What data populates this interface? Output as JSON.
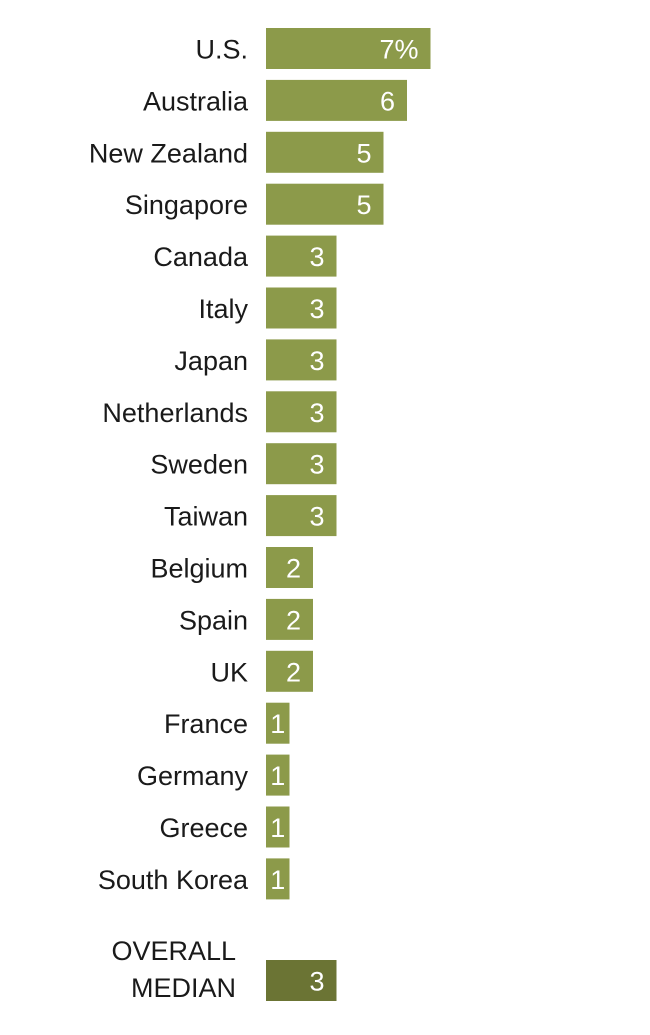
{
  "chart_data": {
    "type": "bar",
    "orientation": "horizontal",
    "categories": [
      "U.S.",
      "Australia",
      "New Zealand",
      "Singapore",
      "Canada",
      "Italy",
      "Japan",
      "Netherlands",
      "Sweden",
      "Taiwan",
      "Belgium",
      "Spain",
      "UK",
      "France",
      "Germany",
      "Greece",
      "South Korea"
    ],
    "values": [
      7,
      6,
      5,
      5,
      3,
      3,
      3,
      3,
      3,
      3,
      2,
      2,
      2,
      1,
      1,
      1,
      1
    ],
    "value_labels": [
      "7%",
      "6",
      "5",
      "5",
      "3",
      "3",
      "3",
      "3",
      "3",
      "3",
      "2",
      "2",
      "2",
      "1",
      "1",
      "1",
      "1"
    ],
    "median": {
      "label_lines": [
        "OVERALL",
        "MEDIAN"
      ],
      "value": 3,
      "value_label": "3"
    },
    "bar_color": "#8c9a4a",
    "median_bar_color": "#6b7434",
    "grid": false,
    "legend": "none"
  }
}
